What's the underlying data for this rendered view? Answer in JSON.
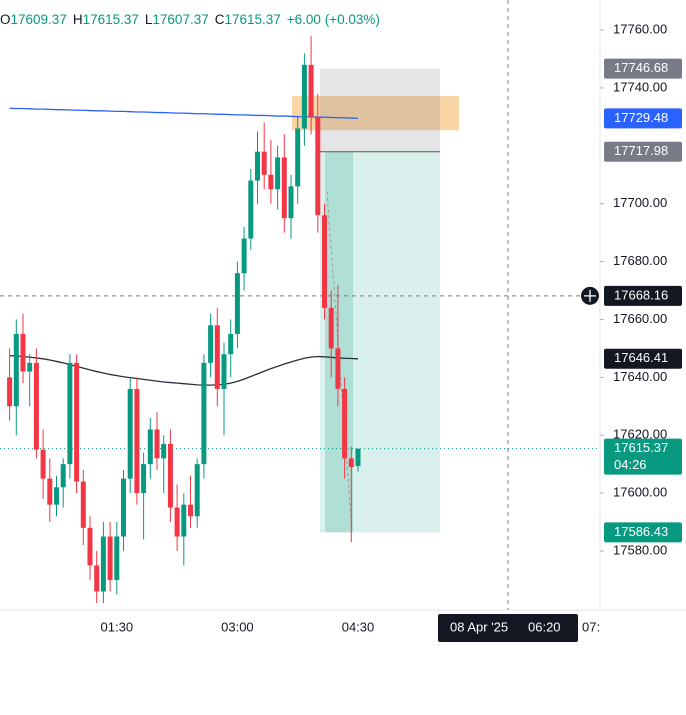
{
  "chart_data": {
    "type": "candlestick",
    "header": {
      "o": "O",
      "h": "H",
      "l": "L",
      "c": "C",
      "change": "+6.00 (+0.03%)"
    },
    "up_color": "#089981",
    "down_color": "#f23645",
    "categories": [
      null,
      null,
      null,
      null,
      null,
      null,
      null,
      null,
      null,
      null,
      null,
      null,
      null,
      null,
      null,
      null,
      "01:30",
      null,
      null,
      null,
      null,
      null,
      null,
      null,
      null,
      null,
      null,
      null,
      null,
      null,
      null,
      null,
      null,
      null,
      "03:00",
      null,
      null,
      null,
      null,
      null,
      null,
      null,
      null,
      null,
      null,
      null,
      null,
      null,
      null,
      null,
      null,
      null,
      "04:30"
    ],
    "x_extra_label": "07:",
    "candles": [
      {
        "open": 17640,
        "high": 17650,
        "low": 17625,
        "close": 17630
      },
      {
        "open": 17630,
        "high": 17660,
        "low": 17620,
        "close": 17655
      },
      {
        "open": 17655,
        "high": 17662,
        "low": 17638,
        "close": 17642
      },
      {
        "open": 17642,
        "high": 17648,
        "low": 17630,
        "close": 17645
      },
      {
        "open": 17645,
        "high": 17650,
        "low": 17612,
        "close": 17615
      },
      {
        "open": 17615,
        "high": 17622,
        "low": 17598,
        "close": 17605
      },
      {
        "open": 17605,
        "high": 17612,
        "low": 17590,
        "close": 17596
      },
      {
        "open": 17596,
        "high": 17606,
        "low": 17592,
        "close": 17602
      },
      {
        "open": 17602,
        "high": 17612,
        "low": 17595,
        "close": 17610
      },
      {
        "open": 17610,
        "high": 17648,
        "low": 17605,
        "close": 17645
      },
      {
        "open": 17645,
        "high": 17648,
        "low": 17600,
        "close": 17604
      },
      {
        "open": 17604,
        "high": 17608,
        "low": 17582,
        "close": 17588
      },
      {
        "open": 17588,
        "high": 17592,
        "low": 17570,
        "close": 17575
      },
      {
        "open": 17575,
        "high": 17580,
        "low": 17562,
        "close": 17566
      },
      {
        "open": 17566,
        "high": 17590,
        "low": 17562,
        "close": 17585
      },
      {
        "open": 17585,
        "high": 17590,
        "low": 17566,
        "close": 17570
      },
      {
        "open": 17570,
        "high": 17590,
        "low": 17565,
        "close": 17585
      },
      {
        "open": 17585,
        "high": 17608,
        "low": 17580,
        "close": 17605
      },
      {
        "open": 17605,
        "high": 17640,
        "low": 17600,
        "close": 17636
      },
      {
        "open": 17636,
        "high": 17640,
        "low": 17596,
        "close": 17600
      },
      {
        "open": 17600,
        "high": 17614,
        "low": 17584,
        "close": 17610
      },
      {
        "open": 17610,
        "high": 17626,
        "low": 17605,
        "close": 17622
      },
      {
        "open": 17622,
        "high": 17628,
        "low": 17608,
        "close": 17612
      },
      {
        "open": 17612,
        "high": 17620,
        "low": 17600,
        "close": 17617
      },
      {
        "open": 17617,
        "high": 17622,
        "low": 17590,
        "close": 17595
      },
      {
        "open": 17595,
        "high": 17603,
        "low": 17580,
        "close": 17585
      },
      {
        "open": 17585,
        "high": 17600,
        "low": 17575,
        "close": 17596
      },
      {
        "open": 17596,
        "high": 17606,
        "low": 17588,
        "close": 17592
      },
      {
        "open": 17592,
        "high": 17612,
        "low": 17588,
        "close": 17610
      },
      {
        "open": 17610,
        "high": 17648,
        "low": 17605,
        "close": 17645
      },
      {
        "open": 17645,
        "high": 17662,
        "low": 17640,
        "close": 17658
      },
      {
        "open": 17658,
        "high": 17664,
        "low": 17630,
        "close": 17636
      },
      {
        "open": 17636,
        "high": 17652,
        "low": 17620,
        "close": 17648
      },
      {
        "open": 17648,
        "high": 17660,
        "low": 17640,
        "close": 17655
      },
      {
        "open": 17655,
        "high": 17680,
        "low": 17650,
        "close": 17676
      },
      {
        "open": 17676,
        "high": 17692,
        "low": 17670,
        "close": 17688
      },
      {
        "open": 17688,
        "high": 17712,
        "low": 17684,
        "close": 17708
      },
      {
        "open": 17708,
        "high": 17725,
        "low": 17700,
        "close": 17718
      },
      {
        "open": 17718,
        "high": 17728,
        "low": 17705,
        "close": 17710
      },
      {
        "open": 17710,
        "high": 17722,
        "low": 17700,
        "close": 17705
      },
      {
        "open": 17705,
        "high": 17720,
        "low": 17698,
        "close": 17716
      },
      {
        "open": 17716,
        "high": 17724,
        "low": 17690,
        "close": 17695
      },
      {
        "open": 17695,
        "high": 17710,
        "low": 17688,
        "close": 17706
      },
      {
        "open": 17706,
        "high": 17730,
        "low": 17700,
        "close": 17726
      },
      {
        "open": 17726,
        "high": 17752,
        "low": 17720,
        "close": 17748
      },
      {
        "open": 17748,
        "high": 17758,
        "low": 17724,
        "close": 17730
      },
      {
        "open": 17730,
        "high": 17738,
        "low": 17690,
        "close": 17696
      },
      {
        "open": 17696,
        "high": 17700,
        "low": 17660,
        "close": 17664
      },
      {
        "open": 17664,
        "high": 17670,
        "low": 17640,
        "close": 17650
      },
      {
        "open": 17650,
        "high": 17672,
        "low": 17630,
        "close": 17636
      },
      {
        "open": 17636,
        "high": 17640,
        "low": 17605,
        "close": 17612
      },
      {
        "open": 17612,
        "high": 17616,
        "low": 17583,
        "close": 17609
      },
      {
        "open": 17609.37,
        "high": 17615.37,
        "low": 17607.37,
        "close": 17615.37
      }
    ],
    "lines": [
      {
        "color": "#2962ff",
        "values": [
          17733.0,
          17732.9,
          17732.9,
          17732.8,
          17732.7,
          17732.7,
          17732.6,
          17732.5,
          17732.5,
          17732.4,
          17732.3,
          17732.3,
          17732.2,
          17732.1,
          17732.1,
          17732.0,
          17731.9,
          17731.9,
          17731.8,
          17731.7,
          17731.7,
          17731.6,
          17731.5,
          17731.5,
          17731.4,
          17731.3,
          17731.3,
          17731.2,
          17731.1,
          17731.1,
          17731.0,
          17730.9,
          17730.9,
          17730.8,
          17730.7,
          17730.7,
          17730.6,
          17730.5,
          17730.5,
          17730.4,
          17730.3,
          17730.3,
          17730.2,
          17730.1,
          17730.1,
          17730.0,
          17729.9,
          17729.9,
          17729.8,
          17729.7,
          17729.7,
          17729.6,
          17729.5
        ]
      },
      {
        "color": "#2a2e39",
        "values": [
          17647.5,
          17647.4,
          17647.2,
          17647.0,
          17646.7,
          17646.4,
          17646.0,
          17645.5,
          17645.0,
          17644.4,
          17643.8,
          17643.2,
          17642.6,
          17642.0,
          17641.5,
          17641.0,
          17640.6,
          17640.2,
          17639.9,
          17639.6,
          17639.3,
          17639.0,
          17638.7,
          17638.4,
          17638.2,
          17638.0,
          17637.8,
          17637.6,
          17637.4,
          17637.3,
          17637.3,
          17637.4,
          17637.6,
          17638.0,
          17638.6,
          17639.4,
          17640.3,
          17641.2,
          17642.1,
          17643.0,
          17643.8,
          17644.6,
          17645.3,
          17646.0,
          17646.6,
          17647.0,
          17647.2,
          17647.1,
          17646.9,
          17646.7,
          17646.6,
          17646.5,
          17646.41
        ]
      }
    ],
    "zone": {
      "top": 17737.2,
      "bottom": 17725.4,
      "color": "#f7c98f"
    },
    "position": {
      "stop": 17746.68,
      "entry": 17717.98,
      "target": 17586.43
    },
    "price_labels": [
      {
        "value": 17746.68,
        "color": "#787b86"
      },
      {
        "value": 17729.48,
        "color": "#2962ff"
      },
      {
        "value": 17717.98,
        "color": "#787b86"
      },
      {
        "value": 17668.16,
        "color": "#131722"
      },
      {
        "value": 17646.41,
        "color": "#131722"
      },
      {
        "value": 17615.37,
        "color": "#089981"
      },
      {
        "value": 17586.43,
        "color": "#089981"
      }
    ],
    "countdown": "04:26",
    "crosshair": {
      "price": 17668.16,
      "date": "08 Apr '25",
      "time": "06:20"
    },
    "ylim": [
      17559.6,
      17770.4
    ],
    "yticks": [
      {
        "value": 17580,
        "label": "17580.00"
      },
      {
        "value": 17600,
        "label": "17600.00"
      },
      {
        "value": 17620,
        "label": "17620.00"
      },
      {
        "value": 17640,
        "label": "17640.00"
      },
      {
        "value": 17660,
        "label": "17660.00"
      },
      {
        "value": 17680,
        "label": "17680.00"
      },
      {
        "value": 17700,
        "label": "17700.00"
      },
      {
        "value": 17740,
        "label": "17740.00"
      },
      {
        "value": 17760,
        "label": "17760.00"
      }
    ]
  }
}
